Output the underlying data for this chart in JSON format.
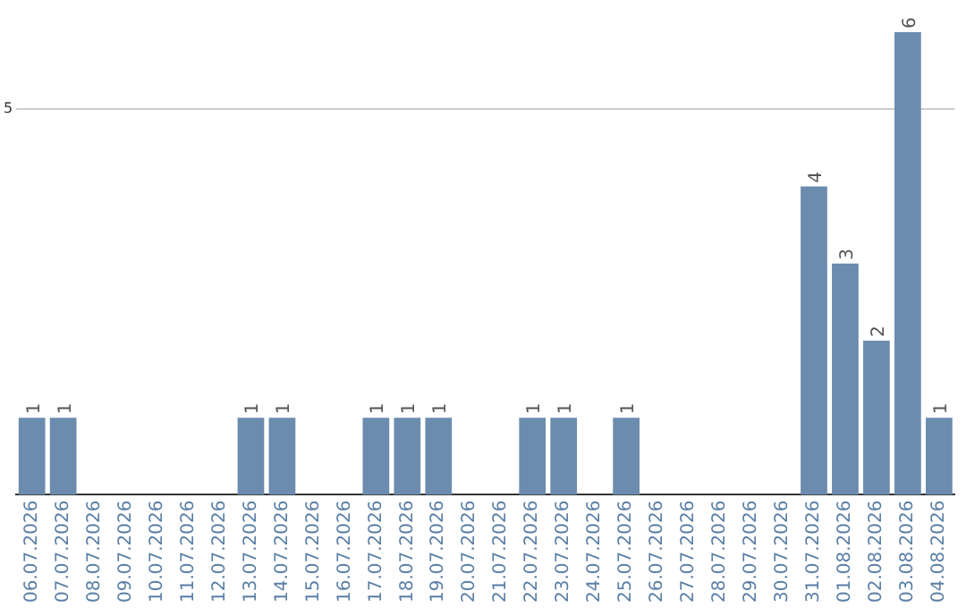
{
  "chart_data": {
    "type": "bar",
    "categories": [
      "06.07.2026",
      "07.07.2026",
      "08.07.2026",
      "09.07.2026",
      "10.07.2026",
      "11.07.2026",
      "12.07.2026",
      "13.07.2026",
      "14.07.2026",
      "15.07.2026",
      "16.07.2026",
      "17.07.2026",
      "18.07.2026",
      "19.07.2026",
      "20.07.2026",
      "21.07.2026",
      "22.07.2026",
      "23.07.2026",
      "24.07.2026",
      "25.07.2026",
      "26.07.2026",
      "27.07.2026",
      "28.07.2026",
      "29.07.2026",
      "30.07.2026",
      "31.07.2026",
      "01.08.2026",
      "02.08.2026",
      "03.08.2026",
      "04.08.2026"
    ],
    "values": [
      1,
      1,
      0,
      0,
      0,
      0,
      0,
      1,
      1,
      0,
      0,
      1,
      1,
      1,
      0,
      0,
      1,
      1,
      0,
      1,
      0,
      0,
      0,
      0,
      0,
      4,
      3,
      2,
      6,
      1
    ],
    "value_labels": [
      "1",
      "1",
      null,
      null,
      null,
      null,
      null,
      "1",
      "1",
      null,
      null,
      "1",
      "1",
      "1",
      null,
      null,
      "1",
      "1",
      null,
      "1",
      null,
      null,
      null,
      null,
      null,
      "4",
      "3",
      "2",
      "6",
      "1"
    ],
    "color": "#6b8cae",
    "ylim": [
      0,
      6
    ],
    "yticks": [
      5
    ],
    "grid": "y",
    "legend": false
  }
}
